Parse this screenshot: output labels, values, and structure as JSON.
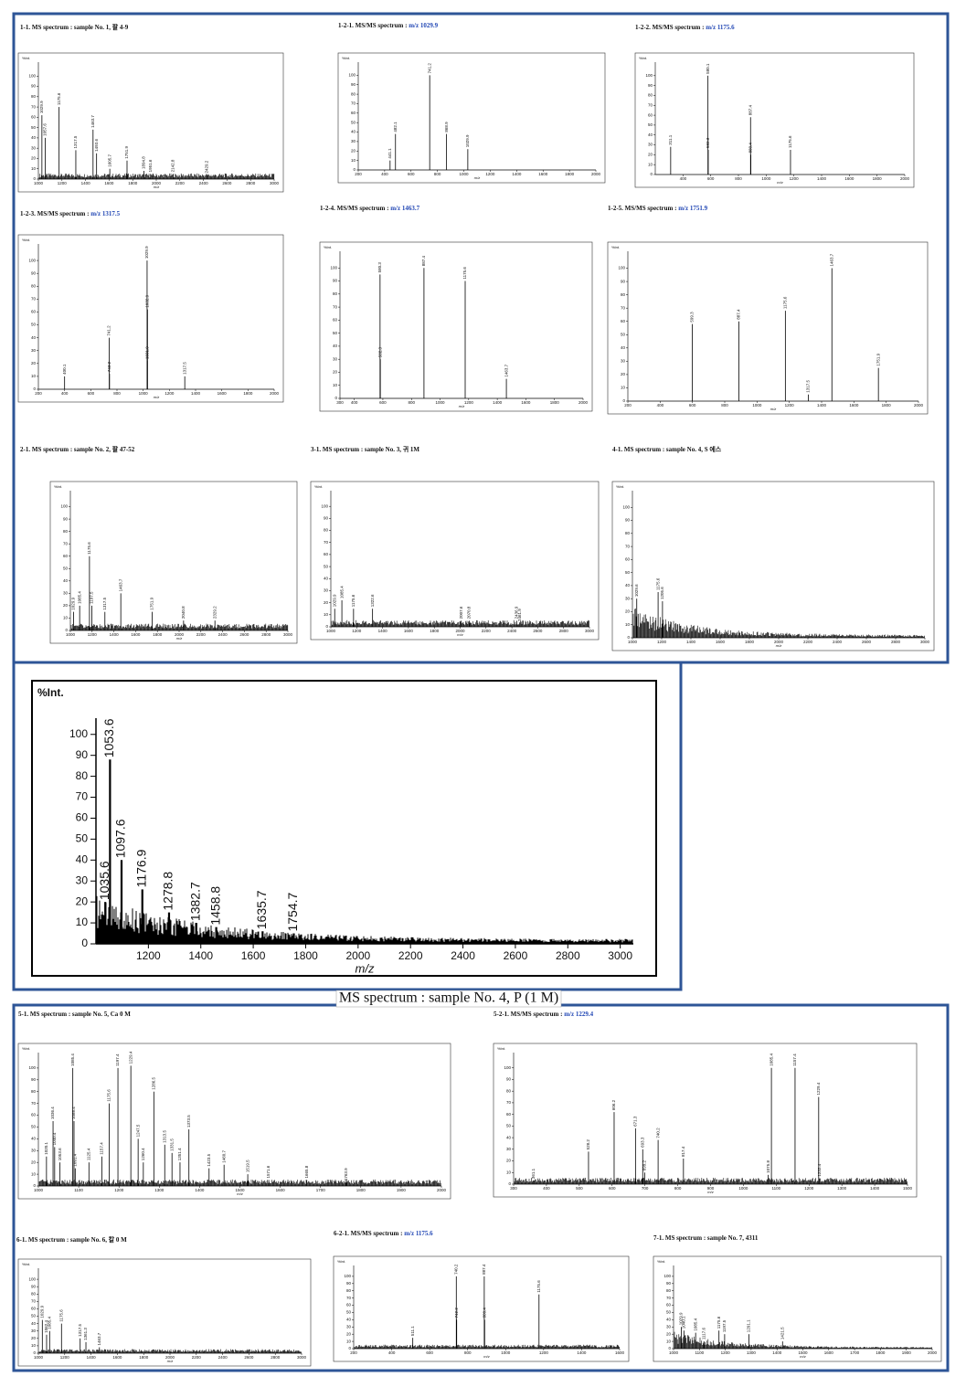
{
  "caption": "MS spectrum : sample No. 4, P (1 M)",
  "chart_data": [
    {
      "type": "stem",
      "title": "1-1. MS spectrum : sample No. 1, 팔 4-9",
      "xlabel": "m/z",
      "ylabel": "%Int.",
      "xlim": [
        1000,
        3000
      ],
      "ylim": [
        0,
        110
      ],
      "xticks": [
        1000,
        1200,
        1400,
        1600,
        1800,
        2000,
        2200,
        2400,
        2600,
        2800,
        3000
      ],
      "yticks": [
        0,
        10,
        20,
        30,
        40,
        50,
        60,
        70,
        80,
        90,
        100
      ],
      "x": [
        1029.9,
        1057.6,
        1175.6,
        1317.5,
        1463.7,
        1493.6,
        1605.7,
        1751.9,
        1894.8,
        1951.6,
        2142.8,
        2429.2
      ],
      "values": [
        62,
        40,
        70,
        28,
        48,
        25,
        10,
        18,
        8,
        5,
        5,
        4
      ],
      "noise": "flat"
    },
    {
      "type": "stem",
      "title": "1-2-1. MS/MS spectrum : ",
      "title_highlight": "m/z 1029.9",
      "xlabel": "m/z",
      "ylabel": "%Int.",
      "xlim": [
        200,
        2000
      ],
      "ylim": [
        0,
        110
      ],
      "xticks": [
        200,
        400,
        600,
        800,
        1000,
        1200,
        1400,
        1600,
        1800,
        2000
      ],
      "yticks": [
        0,
        10,
        20,
        30,
        40,
        50,
        60,
        70,
        80,
        90,
        100
      ],
      "x": [
        441.1,
        482.1,
        741.2,
        868.9,
        1029.9
      ],
      "values": [
        10,
        38,
        100,
        38,
        22
      ]
    },
    {
      "type": "stem",
      "title": "1-2-2. MS/MS spectrum : ",
      "title_highlight": "m/z 1175.6",
      "xlabel": "m/z",
      "ylabel": "%Int.",
      "xlim": [
        200,
        2000
      ],
      "ylim": [
        0,
        110
      ],
      "xticks": [
        400,
        600,
        800,
        1000,
        1200,
        1400,
        1600,
        1800,
        2000
      ],
      "yticks": [
        0,
        10,
        20,
        30,
        40,
        50,
        60,
        70,
        80,
        90,
        100
      ],
      "x": [
        311.1,
        580.1,
        582.3,
        887.4,
        889.4,
        1175.6
      ],
      "values": [
        28,
        100,
        25,
        58,
        20,
        25
      ]
    },
    {
      "type": "stem",
      "title": "1-2-3. MS/MS spectrum : ",
      "title_highlight": "m/z 1317.5",
      "xlabel": "m/z",
      "ylabel": "%Int.",
      "xlim": [
        200,
        2000
      ],
      "ylim": [
        0,
        110
      ],
      "xticks": [
        200,
        400,
        600,
        800,
        1000,
        1200,
        1400,
        1600,
        1800,
        2000
      ],
      "yticks": [
        0,
        10,
        20,
        30,
        40,
        50,
        60,
        70,
        80,
        90,
        100
      ],
      "x": [
        400.1,
        741.2,
        743.2,
        1029.9,
        1031.9,
        1032.9,
        1317.5
      ],
      "values": [
        10,
        40,
        12,
        100,
        22,
        62,
        10
      ]
    },
    {
      "type": "stem",
      "title": "1-2-4. MS/MS spectrum : ",
      "title_highlight": "m/z 1463.7",
      "xlabel": "m/z",
      "ylabel": "%Int.",
      "xlim": [
        300,
        2000
      ],
      "ylim": [
        0,
        110
      ],
      "xticks": [
        300,
        400,
        600,
        800,
        1000,
        1200,
        1400,
        1600,
        1800,
        2000
      ],
      "yticks": [
        0,
        10,
        20,
        30,
        40,
        50,
        60,
        70,
        80,
        90,
        100
      ],
      "x": [
        580.3,
        582.3,
        887.4,
        1175.6,
        1463.7
      ],
      "values": [
        95,
        30,
        100,
        90,
        15
      ]
    },
    {
      "type": "stem",
      "title": "1-2-5. MS/MS spectrum : ",
      "title_highlight": "m/z 1751.9",
      "xlabel": "m/z",
      "ylabel": "%Int.",
      "xlim": [
        200,
        2000
      ],
      "ylim": [
        0,
        110
      ],
      "xticks": [
        200,
        400,
        600,
        800,
        1000,
        1200,
        1400,
        1600,
        1800,
        2000
      ],
      "yticks": [
        0,
        10,
        20,
        30,
        40,
        50,
        60,
        70,
        80,
        90,
        100
      ],
      "x": [
        599.3,
        887.4,
        1175.6,
        1317.5,
        1463.7,
        1751.9
      ],
      "values": [
        58,
        60,
        68,
        5,
        100,
        25
      ]
    },
    {
      "type": "stem",
      "title": "2-1. MS spectrum : sample No. 2, 팔 47-52",
      "xlabel": "m/z",
      "ylabel": "%Int.",
      "xlim": [
        1000,
        3000
      ],
      "ylim": [
        0,
        110
      ],
      "xticks": [
        1000,
        1200,
        1400,
        1600,
        1800,
        2000,
        2200,
        2400,
        2600,
        2800,
        3000
      ],
      "yticks": [
        0,
        10,
        20,
        30,
        40,
        50,
        60,
        70,
        80,
        90,
        100
      ],
      "x": [
        1029.9,
        1085.4,
        1175.6,
        1197.5,
        1317.5,
        1463.7,
        1751.9,
        2040.8,
        2329.2
      ],
      "values": [
        15,
        20,
        60,
        20,
        15,
        30,
        15,
        8,
        8
      ],
      "noise": "flat"
    },
    {
      "type": "stem",
      "title": "3-1. MS spectrum : sample No. 3, 귀 1M",
      "xlabel": "m/z",
      "ylabel": "%Int.",
      "xlim": [
        1000,
        3000
      ],
      "ylim": [
        0,
        110
      ],
      "xticks": [
        1000,
        1200,
        1400,
        1600,
        1800,
        2000,
        2200,
        2400,
        2600,
        2800,
        3000
      ],
      "yticks": [
        0,
        10,
        20,
        30,
        40,
        50,
        60,
        70,
        80,
        90,
        100
      ],
      "x": [
        1029.9,
        1085.4,
        1175.6,
        1322.6,
        2007.6,
        2070.8,
        2436.9,
        2461.9
      ],
      "values": [
        15,
        22,
        15,
        15,
        5,
        5,
        5,
        3
      ],
      "noise": "flat"
    },
    {
      "type": "stem",
      "title": "4-1. MS spectrum : sample No. 4, S 에스",
      "xlabel": "m/z",
      "ylabel": "%Int.",
      "xlim": [
        1000,
        3000
      ],
      "ylim": [
        0,
        110
      ],
      "xticks": [
        1000,
        1200,
        1400,
        1600,
        1800,
        2000,
        2200,
        2400,
        2600,
        2800,
        3000
      ],
      "yticks": [
        0,
        10,
        20,
        30,
        40,
        50,
        60,
        70,
        80,
        90,
        100
      ],
      "x": [
        1029.6,
        1175.6,
        1205.6
      ],
      "values": [
        30,
        35,
        28
      ],
      "noise": "decaying"
    },
    {
      "type": "stem",
      "xlabel": "m/z",
      "ylabel": "%Int.",
      "xlim": [
        1000,
        3050
      ],
      "ylim": [
        0,
        106
      ],
      "xticks": [
        1200,
        1400,
        1600,
        1800,
        2000,
        2200,
        2400,
        2600,
        2800,
        3000
      ],
      "yticks": [
        0,
        10,
        20,
        30,
        40,
        50,
        60,
        70,
        80,
        90,
        100
      ],
      "x": [
        1035.6,
        1053.6,
        1097.6,
        1176.9,
        1278.8,
        1382.7,
        1458.8,
        1635.7,
        1754.7
      ],
      "values": [
        20,
        88,
        40,
        26,
        15,
        10,
        8,
        6,
        5
      ],
      "noise": "decaying"
    },
    {
      "type": "stem",
      "title": "5-1. MS spectrum : sample No. 5, Ca 0 M",
      "xlabel": "m/z",
      "ylabel": "%Int.",
      "xlim": [
        1000,
        2000
      ],
      "ylim": [
        0,
        110
      ],
      "xticks": [
        1000,
        1100,
        1200,
        1300,
        1400,
        1500,
        1600,
        1700,
        1800,
        1900,
        2000
      ],
      "yticks": [
        0,
        10,
        20,
        30,
        40,
        50,
        60,
        70,
        80,
        90,
        100
      ],
      "x": [
        1020.1,
        1036.4,
        1040.4,
        1053.6,
        1085.4,
        1088.4,
        1091.4,
        1125.4,
        1157.4,
        1175.6,
        1197.4,
        1229.4,
        1247.5,
        1260.4,
        1286.5,
        1313.5,
        1331.5,
        1351.4,
        1373.5,
        1423.5,
        1460.7,
        1519.5,
        1571.6,
        1665.8,
        1763.9
      ],
      "values": [
        25,
        55,
        33,
        20,
        100,
        55,
        15,
        20,
        25,
        70,
        100,
        102,
        40,
        20,
        80,
        35,
        28,
        20,
        48,
        15,
        18,
        10,
        5,
        5,
        3
      ],
      "noise": "flat"
    },
    {
      "type": "stem",
      "title": "5-2-1. MS/MS spectrum : ",
      "title_highlight": "m/z 1229.4",
      "xlabel": "m/z",
      "ylabel": "%Int.",
      "xlim": [
        300,
        1500
      ],
      "ylim": [
        0,
        110
      ],
      "xticks": [
        300,
        400,
        500,
        600,
        700,
        800,
        900,
        1000,
        1100,
        1200,
        1300,
        1400,
        1500
      ],
      "yticks": [
        0,
        10,
        20,
        30,
        40,
        50,
        60,
        70,
        80,
        90,
        100
      ],
      "x": [
        361.1,
        528.2,
        606.2,
        671.3,
        693.3,
        699.2,
        740.2,
        817.4,
        1075.8,
        1085.4,
        1157.4,
        1229.4,
        1232.4
      ],
      "values": [
        3,
        28,
        62,
        48,
        30,
        10,
        38,
        22,
        8,
        100,
        100,
        75,
        5
      ],
      "noise": "flat"
    },
    {
      "type": "stem",
      "title": "6-1. MS spectrum : sample No. 6, 칼 0 M",
      "xlabel": "m/z",
      "ylabel": "%Int.",
      "xlim": [
        1000,
        3000
      ],
      "ylim": [
        0,
        110
      ],
      "xticks": [
        1000,
        1200,
        1400,
        1600,
        1800,
        2000,
        2200,
        2400,
        2600,
        2800,
        3000
      ],
      "yticks": [
        0,
        10,
        20,
        30,
        40,
        50,
        60,
        70,
        80,
        90,
        100
      ],
      "x": [
        1029.9,
        1062.4,
        1085.4,
        1175.6,
        1317.5,
        1361.3,
        1463.7
      ],
      "values": [
        45,
        25,
        30,
        40,
        20,
        15,
        8
      ],
      "noise": "flat"
    },
    {
      "type": "stem",
      "title": "6-2-1. MS/MS spectrum : ",
      "title_highlight": "m/z 1175.6",
      "xlabel": "m/z",
      "ylabel": "%Int.",
      "xlim": [
        200,
        1600
      ],
      "ylim": [
        0,
        110
      ],
      "xticks": [
        200,
        400,
        600,
        800,
        1000,
        1200,
        1400,
        1600
      ],
      "yticks": [
        0,
        10,
        20,
        30,
        40,
        50,
        60,
        70,
        80,
        90,
        100
      ],
      "x": [
        511.1,
        740.2,
        742.2,
        887.4,
        889.4,
        1175.6
      ],
      "values": [
        15,
        100,
        40,
        100,
        40,
        75
      ],
      "noise": "flat"
    },
    {
      "type": "stem",
      "title": "7-1. MS spectrum : sample No. 7, 4311",
      "xlabel": "m/z",
      "ylabel": "%Int.",
      "xlim": [
        1000,
        2000
      ],
      "ylim": [
        0,
        110
      ],
      "xticks": [
        1000,
        1100,
        1200,
        1300,
        1400,
        1500,
        1600,
        1700,
        1800,
        1900,
        2000
      ],
      "yticks": [
        0,
        10,
        20,
        30,
        40,
        50,
        60,
        70,
        80,
        90,
        100
      ],
      "x": [
        1029.9,
        1040.1,
        1085.4,
        1117.6,
        1175.6,
        1197.5,
        1291.1,
        1421.5
      ],
      "values": [
        30,
        25,
        22,
        10,
        25,
        20,
        20,
        10
      ],
      "noise": "decaying"
    }
  ]
}
